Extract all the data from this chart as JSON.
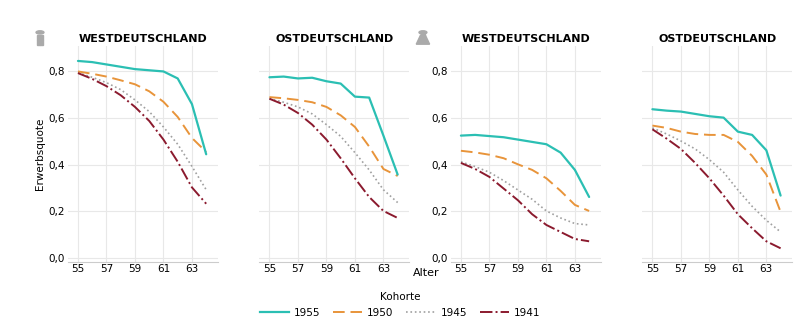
{
  "ages": [
    55,
    56,
    57,
    58,
    59,
    60,
    61,
    62,
    63,
    64
  ],
  "male_west_1955": [
    0.845,
    0.84,
    0.83,
    0.82,
    0.81,
    0.805,
    0.8,
    0.77,
    0.66,
    0.445
  ],
  "male_west_1950": [
    0.8,
    0.79,
    0.778,
    0.762,
    0.745,
    0.715,
    0.67,
    0.605,
    0.515,
    0.455
  ],
  "male_west_1945": [
    0.795,
    0.775,
    0.752,
    0.722,
    0.678,
    0.628,
    0.562,
    0.488,
    0.393,
    0.293
  ],
  "male_west_1941": [
    0.793,
    0.768,
    0.737,
    0.698,
    0.648,
    0.588,
    0.508,
    0.413,
    0.303,
    0.233
  ],
  "male_east_1955": [
    0.775,
    0.778,
    0.77,
    0.773,
    0.758,
    0.748,
    0.692,
    0.688,
    0.525,
    0.358
  ],
  "male_east_1950": [
    0.69,
    0.685,
    0.678,
    0.668,
    0.648,
    0.612,
    0.562,
    0.478,
    0.382,
    0.352
  ],
  "male_east_1945": [
    0.683,
    0.668,
    0.648,
    0.618,
    0.572,
    0.522,
    0.452,
    0.378,
    0.293,
    0.238
  ],
  "male_east_1941": [
    0.683,
    0.658,
    0.622,
    0.572,
    0.508,
    0.428,
    0.342,
    0.262,
    0.202,
    0.172
  ],
  "female_west_1955": [
    0.525,
    0.528,
    0.523,
    0.518,
    0.508,
    0.498,
    0.488,
    0.452,
    0.378,
    0.262
  ],
  "female_west_1950": [
    0.46,
    0.453,
    0.443,
    0.428,
    0.402,
    0.378,
    0.342,
    0.288,
    0.228,
    0.202
  ],
  "female_west_1945": [
    0.413,
    0.392,
    0.368,
    0.332,
    0.292,
    0.252,
    0.202,
    0.172,
    0.148,
    0.142
  ],
  "female_west_1941": [
    0.408,
    0.382,
    0.348,
    0.298,
    0.248,
    0.188,
    0.142,
    0.112,
    0.082,
    0.072
  ],
  "female_east_1955": [
    0.638,
    0.632,
    0.628,
    0.618,
    0.608,
    0.602,
    0.542,
    0.528,
    0.462,
    0.268
  ],
  "female_east_1950": [
    0.568,
    0.558,
    0.542,
    0.532,
    0.528,
    0.528,
    0.498,
    0.438,
    0.358,
    0.198
  ],
  "female_east_1945": [
    0.558,
    0.532,
    0.502,
    0.468,
    0.422,
    0.368,
    0.292,
    0.222,
    0.162,
    0.112
  ],
  "female_east_1941": [
    0.552,
    0.512,
    0.468,
    0.408,
    0.342,
    0.268,
    0.188,
    0.128,
    0.072,
    0.042
  ],
  "color_1955": "#2bbfb3",
  "color_1950": "#e8943a",
  "color_1945": "#a0a0a0",
  "color_1941": "#8b1a2e",
  "ylabel": "Erwerbsquote",
  "xlabel": "Alter",
  "title_male_west": "WESTDEUTSCHLAND",
  "title_male_east": "OSTDEUTSCHLAND",
  "title_female_west": "WESTDEUTSCHLAND",
  "title_female_east": "OSTDEUTSCHLAND",
  "legend_labels": [
    "1955",
    "1950",
    "1945",
    "1941"
  ],
  "legend_title": "Kohorte",
  "icon_color": "#aaaaaa",
  "bg_color": "#ffffff",
  "grid_color": "#e8e8e8",
  "spine_color": "#cccccc"
}
